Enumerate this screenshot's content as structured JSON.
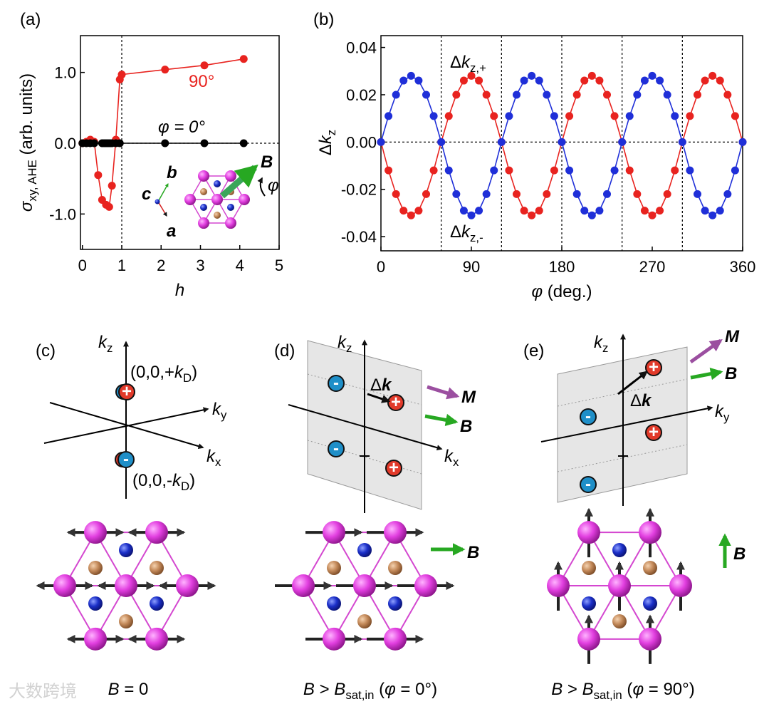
{
  "chart_data": [
    {
      "type": "line",
      "panel": "(a)",
      "y_label": [
        [
          "σ",
          "i"
        ],
        [
          "xy, AHE",
          "s"
        ],
        [
          " (arb. units)",
          "n"
        ]
      ],
      "x_label": [
        [
          "h",
          "i"
        ]
      ],
      "xlim": [
        -0.05,
        5
      ],
      "ylim": [
        -1.5,
        1.52
      ],
      "xticks": [
        0,
        1,
        2,
        3,
        4,
        5
      ],
      "yticks": [
        {
          "value": -1,
          "label": "-1.0"
        },
        {
          "value": 0,
          "label": "0.0"
        },
        {
          "value": 1,
          "label": "1.0"
        }
      ],
      "vlines": [
        1
      ],
      "hlines": [
        0
      ],
      "grid": false,
      "series": [
        {
          "name": "90°",
          "color": "#e8231f",
          "x": [
            0,
            0.1,
            0.2,
            0.3,
            0.4,
            0.5,
            0.6,
            0.68,
            0.75,
            0.85,
            0.95,
            1.0,
            2.1,
            3.1,
            4.1
          ],
          "values": [
            0,
            0.02,
            0.05,
            0.02,
            -0.45,
            -0.8,
            -0.87,
            -0.9,
            -0.6,
            0.05,
            0.9,
            0.97,
            1.04,
            1.1,
            1.19
          ]
        },
        {
          "name": "φ = 0°",
          "color": "#000000",
          "x": [
            0,
            0.1,
            0.2,
            0.3,
            0.5,
            0.55,
            0.6,
            0.65,
            0.7,
            0.75,
            0.85,
            0.95,
            2.1,
            3.1,
            4.1
          ],
          "values": [
            0,
            0,
            0,
            0,
            0,
            0,
            0,
            0,
            0,
            0,
            0,
            0,
            0,
            0,
            0
          ]
        }
      ],
      "inset_labels": {
        "b": "b",
        "c": "c",
        "a": "a",
        "B": "B",
        "phi": "φ"
      }
    },
    {
      "type": "line",
      "panel": "(b)",
      "y_label": [
        [
          "Δ",
          "n"
        ],
        [
          "k",
          "i"
        ],
        [
          "z",
          "s"
        ]
      ],
      "x_label": [
        [
          "φ",
          "i"
        ],
        [
          " (deg.)",
          "n"
        ]
      ],
      "xlim": [
        0,
        360
      ],
      "ylim": [
        -0.046,
        0.045
      ],
      "xticks": [
        0,
        90,
        180,
        270,
        360
      ],
      "yticks": [
        {
          "value": -0.04,
          "label": "-0.04"
        },
        {
          "value": -0.02,
          "label": "-0.02"
        },
        {
          "value": 0,
          "label": "0.00"
        },
        {
          "value": 0.02,
          "label": "0.02"
        },
        {
          "value": 0.04,
          "label": "0.04"
        }
      ],
      "vlines": [
        60,
        120,
        180,
        240,
        300
      ],
      "hlines": [
        0
      ],
      "grid": false,
      "series": [
        {
          "name": [
            [
              "Δ",
              "n"
            ],
            [
              "k",
              "i"
            ],
            [
              "z,+",
              "s"
            ]
          ],
          "color": "#e8231f",
          "x": [
            0,
            7.5,
            15,
            22.5,
            30,
            37.5,
            45,
            52.5,
            60,
            67.5,
            75,
            82.5,
            90,
            97.5,
            105,
            112.5,
            120,
            127.5,
            135,
            142.5,
            150,
            157.5,
            165,
            172.5,
            180,
            187.5,
            195,
            202.5,
            210,
            217.5,
            225,
            232.5,
            240,
            247.5,
            255,
            262.5,
            270,
            277.5,
            285,
            292.5,
            300,
            307.5,
            315,
            322.5,
            330,
            337.5,
            345,
            352.5,
            360
          ],
          "values": [
            0,
            -0.012,
            -0.022,
            -0.029,
            -0.031,
            -0.029,
            -0.022,
            -0.012,
            0,
            0.011,
            0.02,
            0.026,
            0.028,
            0.026,
            0.02,
            0.011,
            0,
            -0.012,
            -0.022,
            -0.029,
            -0.031,
            -0.029,
            -0.022,
            -0.012,
            0,
            0.011,
            0.02,
            0.026,
            0.028,
            0.026,
            0.02,
            0.011,
            0,
            -0.012,
            -0.022,
            -0.029,
            -0.031,
            -0.029,
            -0.022,
            -0.012,
            0,
            0.011,
            0.02,
            0.026,
            0.028,
            0.026,
            0.02,
            0.011,
            0
          ]
        },
        {
          "name": [
            [
              "Δ",
              "n"
            ],
            [
              "k",
              "i"
            ],
            [
              "z,-",
              "s"
            ]
          ],
          "color": "#1f2fd8",
          "x": [
            0,
            7.5,
            15,
            22.5,
            30,
            37.5,
            45,
            52.5,
            60,
            67.5,
            75,
            82.5,
            90,
            97.5,
            105,
            112.5,
            120,
            127.5,
            135,
            142.5,
            150,
            157.5,
            165,
            172.5,
            180,
            187.5,
            195,
            202.5,
            210,
            217.5,
            225,
            232.5,
            240,
            247.5,
            255,
            262.5,
            270,
            277.5,
            285,
            292.5,
            300,
            307.5,
            315,
            322.5,
            330,
            337.5,
            345,
            352.5,
            360
          ],
          "values": [
            0,
            0.011,
            0.02,
            0.026,
            0.028,
            0.026,
            0.02,
            0.011,
            0,
            -0.012,
            -0.022,
            -0.029,
            -0.031,
            -0.029,
            -0.022,
            -0.012,
            0,
            0.011,
            0.02,
            0.026,
            0.028,
            0.026,
            0.02,
            0.011,
            0,
            -0.012,
            -0.022,
            -0.029,
            -0.031,
            -0.029,
            -0.022,
            -0.012,
            0,
            0.011,
            0.02,
            0.026,
            0.028,
            0.026,
            0.02,
            0.011,
            0,
            -0.012,
            -0.022,
            -0.029,
            -0.031,
            -0.029,
            -0.022,
            -0.012,
            0
          ]
        }
      ]
    }
  ],
  "diagrams": {
    "plus": "+",
    "minus": "-",
    "c": {
      "label": "(c)",
      "kz": [
        [
          "k",
          "i"
        ],
        [
          "z",
          "s"
        ]
      ],
      "ky": [
        [
          "k",
          "i"
        ],
        [
          "y",
          "s"
        ]
      ],
      "kx": [
        [
          "k",
          "i"
        ],
        [
          "x",
          "s"
        ]
      ],
      "kd_plus": [
        [
          "(0,0,+",
          "n"
        ],
        [
          "k",
          "i"
        ],
        [
          "D",
          "s"
        ],
        [
          ")",
          "n"
        ]
      ],
      "kd_minus": [
        [
          "(0,0,-",
          "n"
        ],
        [
          "k",
          "i"
        ],
        [
          "D",
          "s"
        ],
        [
          ")",
          "n"
        ]
      ],
      "caption": [
        [
          "B",
          "i"
        ],
        [
          " = 0",
          "n"
        ]
      ]
    },
    "d": {
      "label": "(d)",
      "kz": [
        [
          "k",
          "i"
        ],
        [
          "z",
          "s"
        ]
      ],
      "kx": [
        [
          "k",
          "i"
        ],
        [
          "x",
          "s"
        ]
      ],
      "dk": [
        [
          "Δ",
          "n"
        ],
        [
          "k",
          "b"
        ]
      ],
      "M": "M",
      "B": "B",
      "B_lattice": "B",
      "caption": [
        [
          "B",
          "i"
        ],
        [
          " > ",
          "n"
        ],
        [
          "B",
          "i"
        ],
        [
          "sat,in",
          "s"
        ],
        [
          " (",
          "n"
        ],
        [
          "φ",
          "i"
        ],
        [
          " = 0°)",
          "n"
        ]
      ]
    },
    "e": {
      "label": "(e)",
      "kz": [
        [
          "k",
          "i"
        ],
        [
          "z",
          "s"
        ]
      ],
      "ky": [
        [
          "k",
          "i"
        ],
        [
          "y",
          "s"
        ]
      ],
      "dk": [
        [
          "Δ",
          "n"
        ],
        [
          "k",
          "b"
        ]
      ],
      "M": "M",
      "B": "B",
      "B_lattice": "B",
      "caption": [
        [
          "B",
          "i"
        ],
        [
          " > ",
          "n"
        ],
        [
          "B",
          "i"
        ],
        [
          "sat,in",
          "s"
        ],
        [
          " (",
          "n"
        ],
        [
          "φ",
          "i"
        ],
        [
          " = 90°)",
          "n"
        ]
      ]
    }
  },
  "watermark": "大数跨境"
}
